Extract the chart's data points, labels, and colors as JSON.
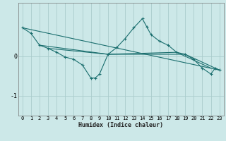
{
  "xlabel": "Humidex (Indice chaleur)",
  "bg_color": "#cce8e8",
  "grid_color": "#aacccc",
  "line_color": "#1a6e6e",
  "xlim": [
    -0.5,
    23.5
  ],
  "ylim": [
    -1.5,
    1.35
  ],
  "yticks": [
    -1,
    0
  ],
  "xticks": [
    0,
    1,
    2,
    3,
    4,
    5,
    6,
    7,
    8,
    9,
    10,
    11,
    12,
    13,
    14,
    15,
    16,
    17,
    18,
    19,
    20,
    21,
    22,
    23
  ],
  "series_main": [
    [
      0,
      0.72
    ],
    [
      1,
      0.58
    ],
    [
      2,
      0.28
    ],
    [
      3,
      0.2
    ],
    [
      4,
      0.1
    ],
    [
      5,
      -0.02
    ],
    [
      6,
      -0.08
    ],
    [
      7,
      -0.22
    ],
    [
      8,
      -0.55
    ],
    [
      8.5,
      -0.55
    ],
    [
      9,
      -0.45
    ],
    [
      10,
      0.05
    ],
    [
      11,
      0.22
    ],
    [
      12,
      0.45
    ],
    [
      13,
      0.72
    ],
    [
      14,
      0.95
    ],
    [
      14.5,
      0.75
    ],
    [
      15,
      0.55
    ],
    [
      16,
      0.38
    ],
    [
      17,
      0.28
    ],
    [
      18,
      0.1
    ],
    [
      19,
      0.05
    ],
    [
      20,
      -0.08
    ],
    [
      21,
      -0.3
    ],
    [
      22,
      -0.45
    ],
    [
      22.5,
      -0.3
    ],
    [
      23,
      -0.35
    ]
  ],
  "series_line1": [
    [
      0,
      0.72
    ],
    [
      23,
      -0.35
    ]
  ],
  "series_line2": [
    [
      2,
      0.28
    ],
    [
      10,
      0.05
    ],
    [
      19,
      0.05
    ],
    [
      23,
      -0.35
    ]
  ],
  "series_line3": [
    [
      3,
      0.2
    ],
    [
      10,
      0.05
    ],
    [
      18,
      0.1
    ],
    [
      22,
      -0.3
    ]
  ]
}
